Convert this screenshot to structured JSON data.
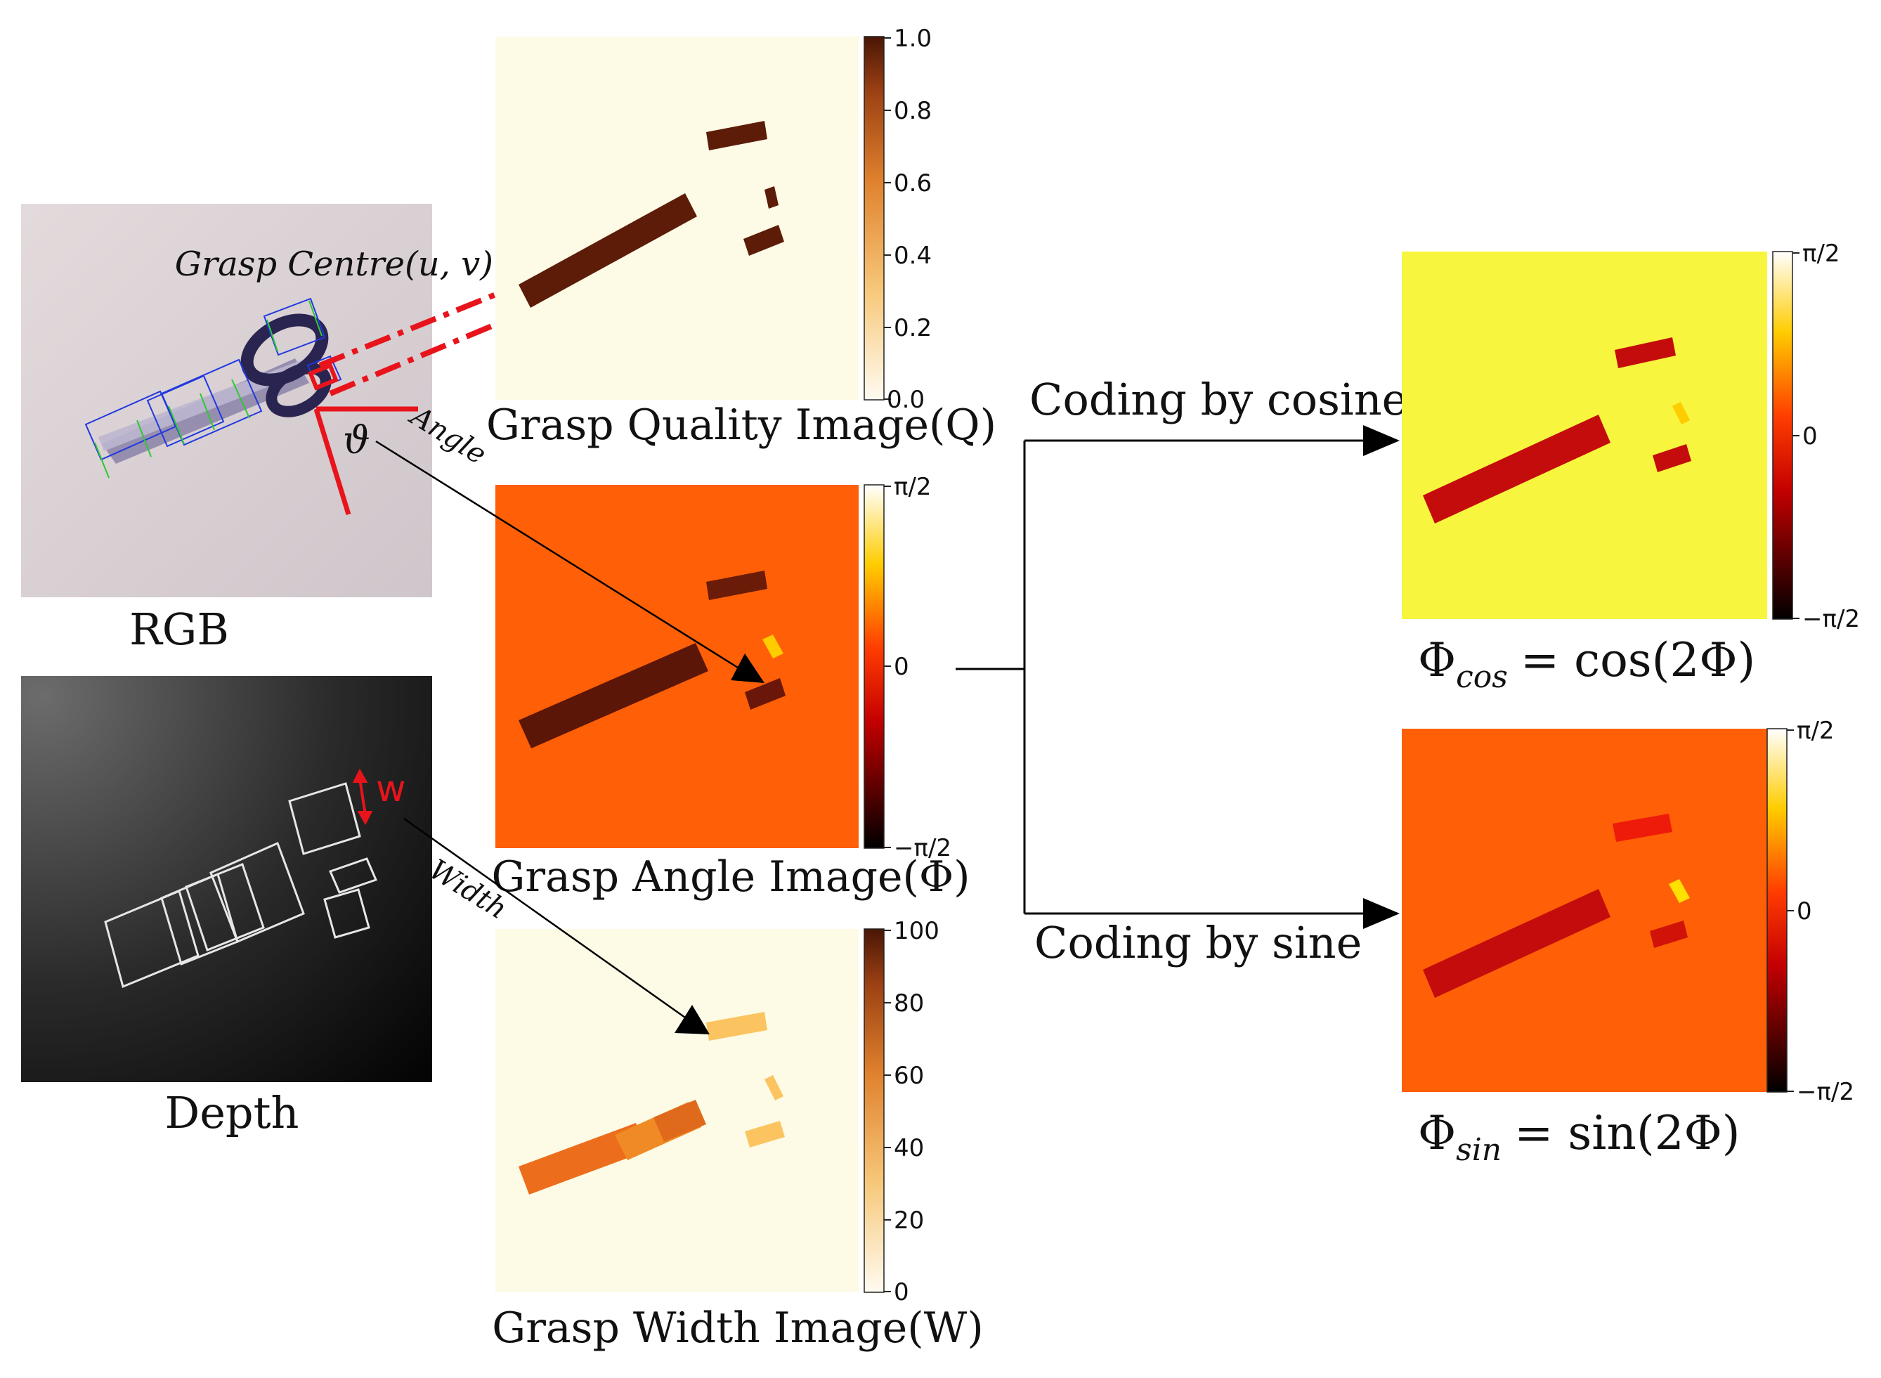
{
  "inputs": {
    "rgb_caption": "RGB",
    "depth_caption": "Depth",
    "grasp_centre_label": "Grasp Centre(u, v)",
    "theta_symbol": "ϑ",
    "angle_annotation": "Angle",
    "width_annotation": "Width",
    "w_symbol": "w"
  },
  "maps": {
    "quality": {
      "caption": "Grasp Quality Image(Q)",
      "colorbar_ticks": [
        "1.0",
        "0.8",
        "0.6",
        "0.4",
        "0.2",
        "0.0"
      ]
    },
    "angle": {
      "caption": "Grasp Angle Image(Φ)",
      "colorbar_ticks": [
        "π/2",
        "0",
        "−π/2"
      ]
    },
    "width": {
      "caption": "Grasp Width Image(W)",
      "colorbar_ticks": [
        "100",
        "80",
        "60",
        "40",
        "20",
        "0"
      ]
    },
    "cos": {
      "caption_lhs": "Φ",
      "caption_sub": "cos",
      "caption_rhs": "= cos(2Φ)",
      "colorbar_ticks": [
        "π/2",
        "0",
        "−π/2"
      ]
    },
    "sin": {
      "caption_lhs": "Φ",
      "caption_sub": "sin",
      "caption_rhs": "= sin(2Φ)",
      "colorbar_ticks": [
        "π/2",
        "0",
        "−π/2"
      ]
    }
  },
  "coding": {
    "cosine_label": "Coding by cosine",
    "sine_label": "Coding by sine"
  },
  "colors": {
    "rectangle_red": "#e8141c",
    "quality_bg": "#fdfbe6",
    "angle_bg": "#fe5f07",
    "cos_bg": "#f8f53e",
    "width_fill": "#f08a24",
    "dark_bar": "#5c1c08"
  }
}
